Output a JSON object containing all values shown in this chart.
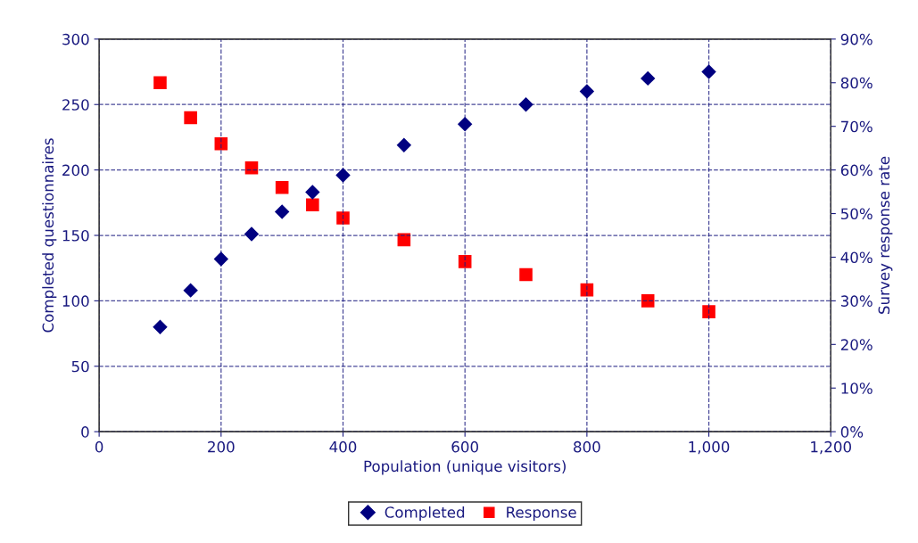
{
  "chart_data": {
    "type": "scatter",
    "xlabel": "Population (unique visitors)",
    "ylabel": "Completed questionnaires",
    "y2label": "Survey response rate",
    "x": [
      100,
      150,
      200,
      250,
      300,
      350,
      400,
      500,
      600,
      700,
      800,
      900,
      1000
    ],
    "series": [
      {
        "name": "Completed",
        "color": "#000080",
        "marker": "diamond",
        "values": [
          80,
          108,
          132,
          151,
          168,
          183,
          196,
          219,
          235,
          250,
          260,
          270,
          275
        ]
      },
      {
        "name": "Response",
        "color": "#ff0000",
        "marker": "square",
        "axis": "y2",
        "values": [
          80,
          72,
          66,
          60.5,
          56,
          52,
          49,
          44,
          39,
          36,
          32.5,
          30,
          27.5
        ]
      }
    ],
    "xlim": [
      0,
      1200
    ],
    "xticks": [
      0,
      200,
      400,
      600,
      800,
      {
        "value": 1000,
        "label": "1,000"
      },
      {
        "value": 1200,
        "label": "1,200"
      }
    ],
    "ylim": [
      0,
      300
    ],
    "yticks": [
      0,
      50,
      100,
      150,
      200,
      250,
      300
    ],
    "y2lim": [
      0,
      90
    ],
    "y2ticks": [
      {
        "value": 0,
        "label": "0%"
      },
      {
        "value": 10,
        "label": "10%"
      },
      {
        "value": 20,
        "label": "20%"
      },
      {
        "value": 30,
        "label": "30%"
      },
      {
        "value": 40,
        "label": "40%"
      },
      {
        "value": 50,
        "label": "50%"
      },
      {
        "value": 60,
        "label": "60%"
      },
      {
        "value": 70,
        "label": "70%"
      },
      {
        "value": 80,
        "label": "80%"
      },
      {
        "value": 90,
        "label": "90%"
      }
    ],
    "grid": true,
    "line_style": "dashed",
    "legend": "bottom"
  }
}
